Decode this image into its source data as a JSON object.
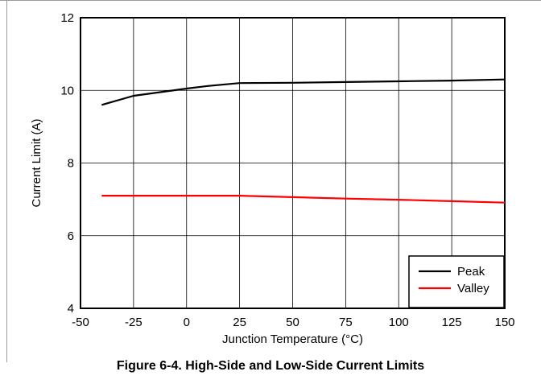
{
  "chart_data": {
    "type": "line",
    "title": "",
    "caption": "Figure 6-4. High-Side and Low-Side Current Limits",
    "xlabel": "Junction Temperature (°C)",
    "ylabel": "Current Limit (A)",
    "xlim": [
      -50,
      150
    ],
    "ylim": [
      4,
      12
    ],
    "xticks": [
      -50,
      -25,
      0,
      25,
      50,
      75,
      100,
      125,
      150
    ],
    "yticks": [
      4,
      6,
      8,
      10,
      12
    ],
    "grid": true,
    "legend_position": "bottom-right",
    "series": [
      {
        "name": "Peak",
        "color": "#000000",
        "x": [
          -40,
          -25,
          -10,
          0,
          10,
          25,
          50,
          75,
          100,
          125,
          150
        ],
        "y": [
          9.6,
          9.85,
          9.97,
          10.05,
          10.12,
          10.2,
          10.21,
          10.23,
          10.25,
          10.27,
          10.3
        ]
      },
      {
        "name": "Valley",
        "color": "#ff0000",
        "x": [
          -40,
          0,
          25,
          50,
          75,
          100,
          125,
          150
        ],
        "y": [
          7.1,
          7.1,
          7.1,
          7.06,
          7.02,
          6.99,
          6.95,
          6.91
        ]
      }
    ]
  }
}
